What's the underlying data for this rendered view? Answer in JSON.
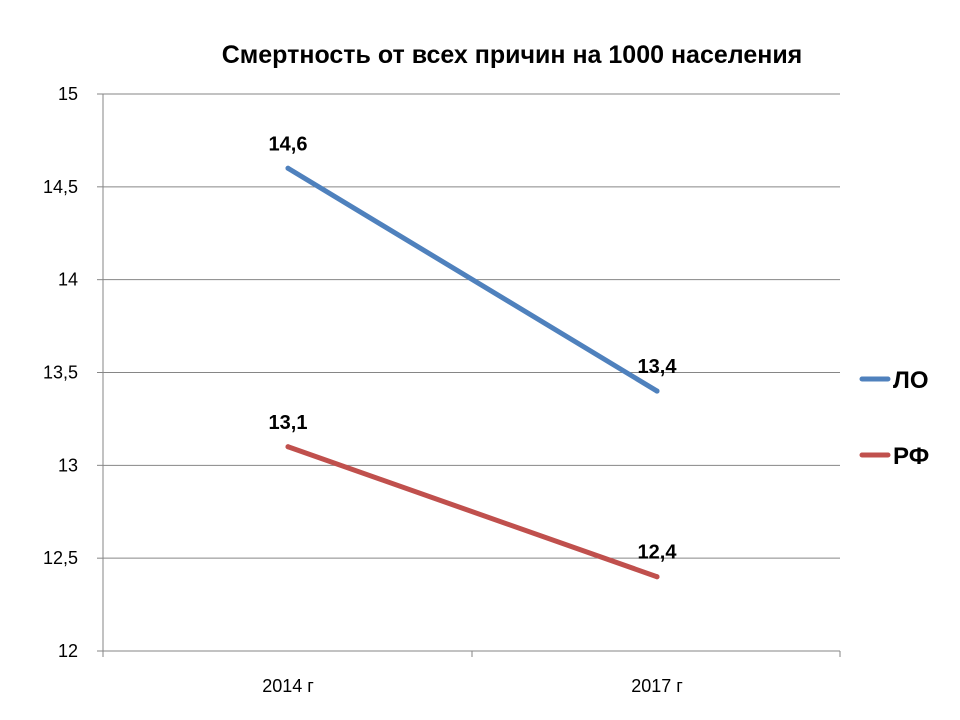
{
  "chart_data": {
    "type": "line",
    "title": "Смертность от всех причин на 1000 населения",
    "categories": [
      "2014 г",
      "2017 г"
    ],
    "y_ticks": [
      "12",
      "12,5",
      "13",
      "13,5",
      "14",
      "14,5",
      "15"
    ],
    "ylim": [
      12,
      15
    ],
    "grid": true,
    "legend_position": "right",
    "series": [
      {
        "name": "ЛО",
        "values": [
          14.6,
          13.4
        ],
        "labels": [
          "14,6",
          "13,4"
        ],
        "color": "#4f81bd"
      },
      {
        "name": "РФ",
        "values": [
          13.1,
          12.4
        ],
        "labels": [
          "13,1",
          "12,4"
        ],
        "color": "#c0504d"
      }
    ]
  }
}
